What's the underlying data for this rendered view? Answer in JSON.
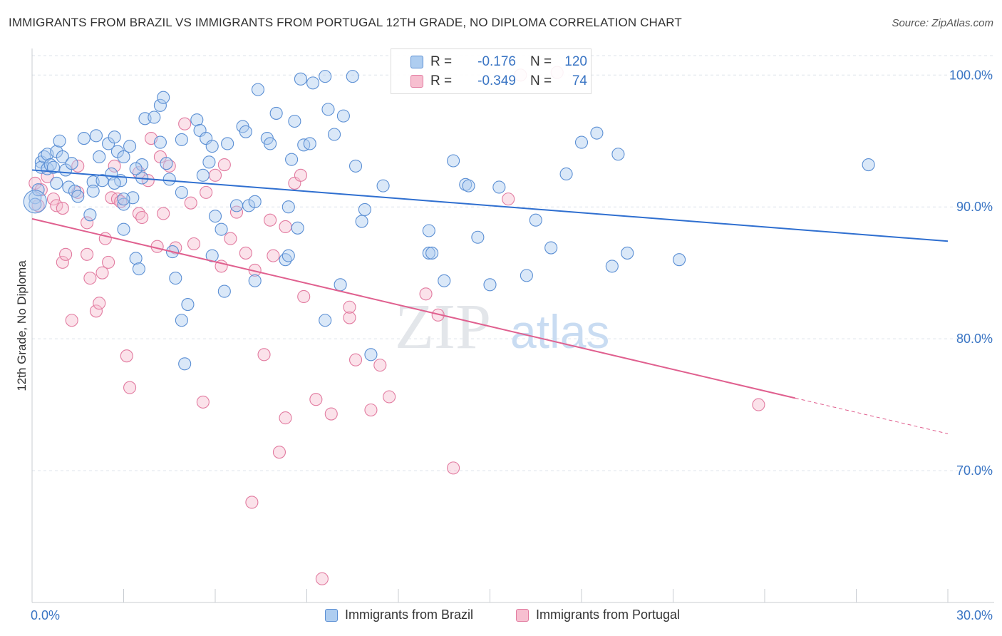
{
  "title": "IMMIGRANTS FROM BRAZIL VS IMMIGRANTS FROM PORTUGAL 12TH GRADE, NO DIPLOMA CORRELATION CHART",
  "source": "Source: ZipAtlas.com",
  "watermark": {
    "zip": "ZIP",
    "atlas": "atlas"
  },
  "colors": {
    "brazil_fill": "#aecdf0",
    "brazil_stroke": "#5b8fd4",
    "brazil_line": "#2f6fd0",
    "portugal_fill": "#f7bfd0",
    "portugal_stroke": "#e27ba0",
    "portugal_line": "#e0608f",
    "grid": "#dde3ea",
    "value_text": "#3a75c4"
  },
  "stats": {
    "brazil": {
      "r_label": "R =",
      "r_value": "-0.176",
      "n_label": "N =",
      "n_value": "120"
    },
    "portugal": {
      "r_label": "R =",
      "r_value": "-0.349",
      "n_label": "N =",
      "n_value": "74"
    }
  },
  "legend": {
    "brazil": "Immigrants from Brazil",
    "portugal": "Immigrants from Portugal"
  },
  "chart_data": {
    "type": "scatter",
    "title": "IMMIGRANTS FROM BRAZIL VS IMMIGRANTS FROM PORTUGAL 12TH GRADE, NO DIPLOMA CORRELATION CHART",
    "xlabel": "",
    "ylabel": "12th Grade, No Diploma",
    "xlim": [
      0,
      30
    ],
    "ylim": [
      60,
      101.8
    ],
    "x_tick_labels": [
      "0.0%",
      "30.0%"
    ],
    "y_ticks": [
      70,
      80,
      90,
      100
    ],
    "y_tick_labels": [
      "70.0%",
      "80.0%",
      "90.0%",
      "100.0%"
    ],
    "grid": true,
    "legend_position": "bottom",
    "series": [
      {
        "name": "Immigrants from Brazil",
        "trend": {
          "x": [
            0,
            30
          ],
          "y": [
            92.8,
            87.4
          ]
        },
        "points": [
          [
            0.1,
            90.7
          ],
          [
            0.1,
            90.2
          ],
          [
            0.2,
            91.3
          ],
          [
            0.3,
            93.4
          ],
          [
            0.3,
            93.0
          ],
          [
            0.4,
            93.8
          ],
          [
            0.5,
            94.0
          ],
          [
            0.5,
            92.9
          ],
          [
            0.6,
            93.2
          ],
          [
            0.7,
            93.0
          ],
          [
            0.8,
            94.2
          ],
          [
            0.8,
            91.8
          ],
          [
            0.9,
            95.0
          ],
          [
            1.0,
            93.8
          ],
          [
            1.1,
            92.8
          ],
          [
            1.2,
            91.5
          ],
          [
            1.3,
            93.3
          ],
          [
            1.4,
            91.2
          ],
          [
            1.5,
            90.8
          ],
          [
            1.7,
            95.2
          ],
          [
            1.9,
            89.4
          ],
          [
            2.0,
            91.9
          ],
          [
            2.0,
            91.2
          ],
          [
            2.1,
            95.4
          ],
          [
            2.2,
            93.8
          ],
          [
            2.3,
            92.0
          ],
          [
            2.5,
            94.8
          ],
          [
            2.6,
            92.5
          ],
          [
            2.7,
            95.3
          ],
          [
            2.8,
            94.2
          ],
          [
            2.9,
            92.0
          ],
          [
            2.7,
            91.8
          ],
          [
            3.0,
            93.8
          ],
          [
            3.0,
            88.3
          ],
          [
            3.2,
            94.6
          ],
          [
            3.3,
            90.7
          ],
          [
            3.6,
            93.2
          ],
          [
            3.6,
            92.2
          ],
          [
            3.4,
            86.1
          ],
          [
            3.0,
            90.2
          ],
          [
            3.0,
            90.6
          ],
          [
            3.4,
            92.9
          ],
          [
            3.5,
            85.3
          ],
          [
            3.7,
            96.7
          ],
          [
            4.0,
            96.8
          ],
          [
            4.2,
            94.9
          ],
          [
            4.2,
            97.7
          ],
          [
            4.3,
            98.3
          ],
          [
            4.4,
            93.3
          ],
          [
            4.5,
            92.1
          ],
          [
            4.6,
            86.6
          ],
          [
            4.7,
            84.6
          ],
          [
            4.9,
            95.1
          ],
          [
            4.9,
            91.1
          ],
          [
            4.9,
            81.4
          ],
          [
            5.0,
            78.1
          ],
          [
            5.1,
            82.6
          ],
          [
            5.4,
            96.6
          ],
          [
            5.5,
            95.8
          ],
          [
            5.6,
            92.4
          ],
          [
            5.7,
            95.2
          ],
          [
            5.9,
            94.6
          ],
          [
            5.8,
            93.4
          ],
          [
            5.9,
            86.3
          ],
          [
            6.0,
            89.3
          ],
          [
            6.2,
            88.3
          ],
          [
            6.3,
            83.6
          ],
          [
            6.4,
            94.8
          ],
          [
            6.7,
            90.1
          ],
          [
            6.9,
            96.1
          ],
          [
            7.0,
            95.7
          ],
          [
            7.1,
            90.1
          ],
          [
            7.3,
            90.4
          ],
          [
            7.4,
            98.9
          ],
          [
            7.3,
            84.4
          ],
          [
            7.7,
            95.2
          ],
          [
            7.8,
            94.8
          ],
          [
            8.0,
            97.1
          ],
          [
            8.3,
            86.0
          ],
          [
            8.4,
            86.3
          ],
          [
            8.5,
            93.6
          ],
          [
            8.4,
            90.0
          ],
          [
            8.6,
            96.5
          ],
          [
            8.7,
            88.4
          ],
          [
            8.8,
            99.7
          ],
          [
            8.9,
            94.7
          ],
          [
            9.1,
            94.8
          ],
          [
            9.2,
            99.4
          ],
          [
            9.6,
            99.9
          ],
          [
            9.6,
            81.4
          ],
          [
            9.7,
            97.4
          ],
          [
            9.9,
            95.5
          ],
          [
            10.1,
            84.1
          ],
          [
            10.2,
            96.9
          ],
          [
            10.5,
            99.9
          ],
          [
            10.6,
            93.1
          ],
          [
            10.8,
            88.9
          ],
          [
            10.9,
            89.8
          ],
          [
            11.1,
            78.8
          ],
          [
            11.5,
            91.6
          ],
          [
            13.0,
            88.2
          ],
          [
            13.0,
            86.5
          ],
          [
            13.1,
            86.5
          ],
          [
            13.5,
            84.4
          ],
          [
            13.8,
            93.5
          ],
          [
            14.2,
            91.7
          ],
          [
            14.3,
            91.6
          ],
          [
            14.6,
            87.7
          ],
          [
            15.0,
            84.1
          ],
          [
            15.3,
            91.5
          ],
          [
            16.2,
            84.8
          ],
          [
            16.5,
            89.0
          ],
          [
            17.0,
            86.9
          ],
          [
            17.5,
            92.5
          ],
          [
            18.0,
            94.9
          ],
          [
            18.5,
            95.6
          ],
          [
            19.0,
            85.5
          ],
          [
            21.2,
            86.0
          ],
          [
            19.5,
            86.5
          ],
          [
            27.4,
            93.2
          ],
          [
            19.2,
            94.0
          ]
        ]
      },
      {
        "name": "Immigrants from Portugal",
        "trend": {
          "x": [
            0,
            25
          ],
          "y": [
            89.1,
            75.5
          ]
        },
        "trend_dashed": {
          "x": [
            25,
            30
          ],
          "y": [
            75.5,
            72.8
          ]
        },
        "points": [
          [
            0.1,
            91.8
          ],
          [
            0.2,
            90.1
          ],
          [
            0.3,
            91.3
          ],
          [
            0.5,
            92.3
          ],
          [
            0.7,
            90.6
          ],
          [
            0.8,
            90.1
          ],
          [
            1.0,
            89.9
          ],
          [
            1.0,
            85.8
          ],
          [
            1.1,
            86.4
          ],
          [
            1.3,
            81.4
          ],
          [
            1.5,
            93.1
          ],
          [
            1.5,
            91.1
          ],
          [
            1.8,
            86.4
          ],
          [
            1.8,
            88.8
          ],
          [
            1.9,
            84.6
          ],
          [
            2.1,
            82.1
          ],
          [
            2.2,
            82.7
          ],
          [
            2.3,
            85.0
          ],
          [
            2.4,
            87.6
          ],
          [
            2.5,
            85.8
          ],
          [
            2.6,
            90.7
          ],
          [
            2.7,
            93.1
          ],
          [
            2.8,
            90.6
          ],
          [
            2.9,
            90.4
          ],
          [
            3.1,
            78.7
          ],
          [
            3.2,
            76.3
          ],
          [
            3.5,
            92.6
          ],
          [
            3.5,
            89.5
          ],
          [
            3.6,
            89.2
          ],
          [
            3.8,
            92.0
          ],
          [
            3.9,
            95.2
          ],
          [
            4.1,
            87.0
          ],
          [
            4.2,
            93.8
          ],
          [
            4.3,
            89.5
          ],
          [
            4.5,
            93.1
          ],
          [
            4.7,
            86.9
          ],
          [
            5.0,
            96.3
          ],
          [
            5.2,
            90.3
          ],
          [
            5.3,
            87.2
          ],
          [
            5.6,
            75.2
          ],
          [
            5.7,
            91.1
          ],
          [
            6.0,
            92.4
          ],
          [
            6.2,
            85.5
          ],
          [
            6.3,
            93.2
          ],
          [
            6.5,
            87.6
          ],
          [
            6.7,
            89.6
          ],
          [
            7.0,
            86.5
          ],
          [
            7.2,
            67.6
          ],
          [
            7.3,
            85.2
          ],
          [
            7.6,
            78.8
          ],
          [
            7.8,
            89.0
          ],
          [
            7.9,
            86.3
          ],
          [
            8.1,
            71.4
          ],
          [
            8.3,
            74.0
          ],
          [
            8.3,
            88.5
          ],
          [
            8.6,
            91.8
          ],
          [
            8.8,
            92.4
          ],
          [
            8.9,
            83.2
          ],
          [
            9.3,
            75.4
          ],
          [
            9.5,
            61.8
          ],
          [
            9.8,
            74.3
          ],
          [
            10.4,
            81.6
          ],
          [
            10.4,
            82.4
          ],
          [
            10.6,
            78.4
          ],
          [
            11.1,
            74.6
          ],
          [
            11.4,
            78.0
          ],
          [
            11.7,
            75.6
          ],
          [
            12.9,
            83.4
          ],
          [
            13.3,
            81.8
          ],
          [
            13.8,
            70.2
          ],
          [
            15.6,
            90.6
          ],
          [
            17.2,
            100.2
          ],
          [
            23.8,
            75.0
          ],
          [
            16.0,
            100.0
          ]
        ]
      }
    ]
  }
}
